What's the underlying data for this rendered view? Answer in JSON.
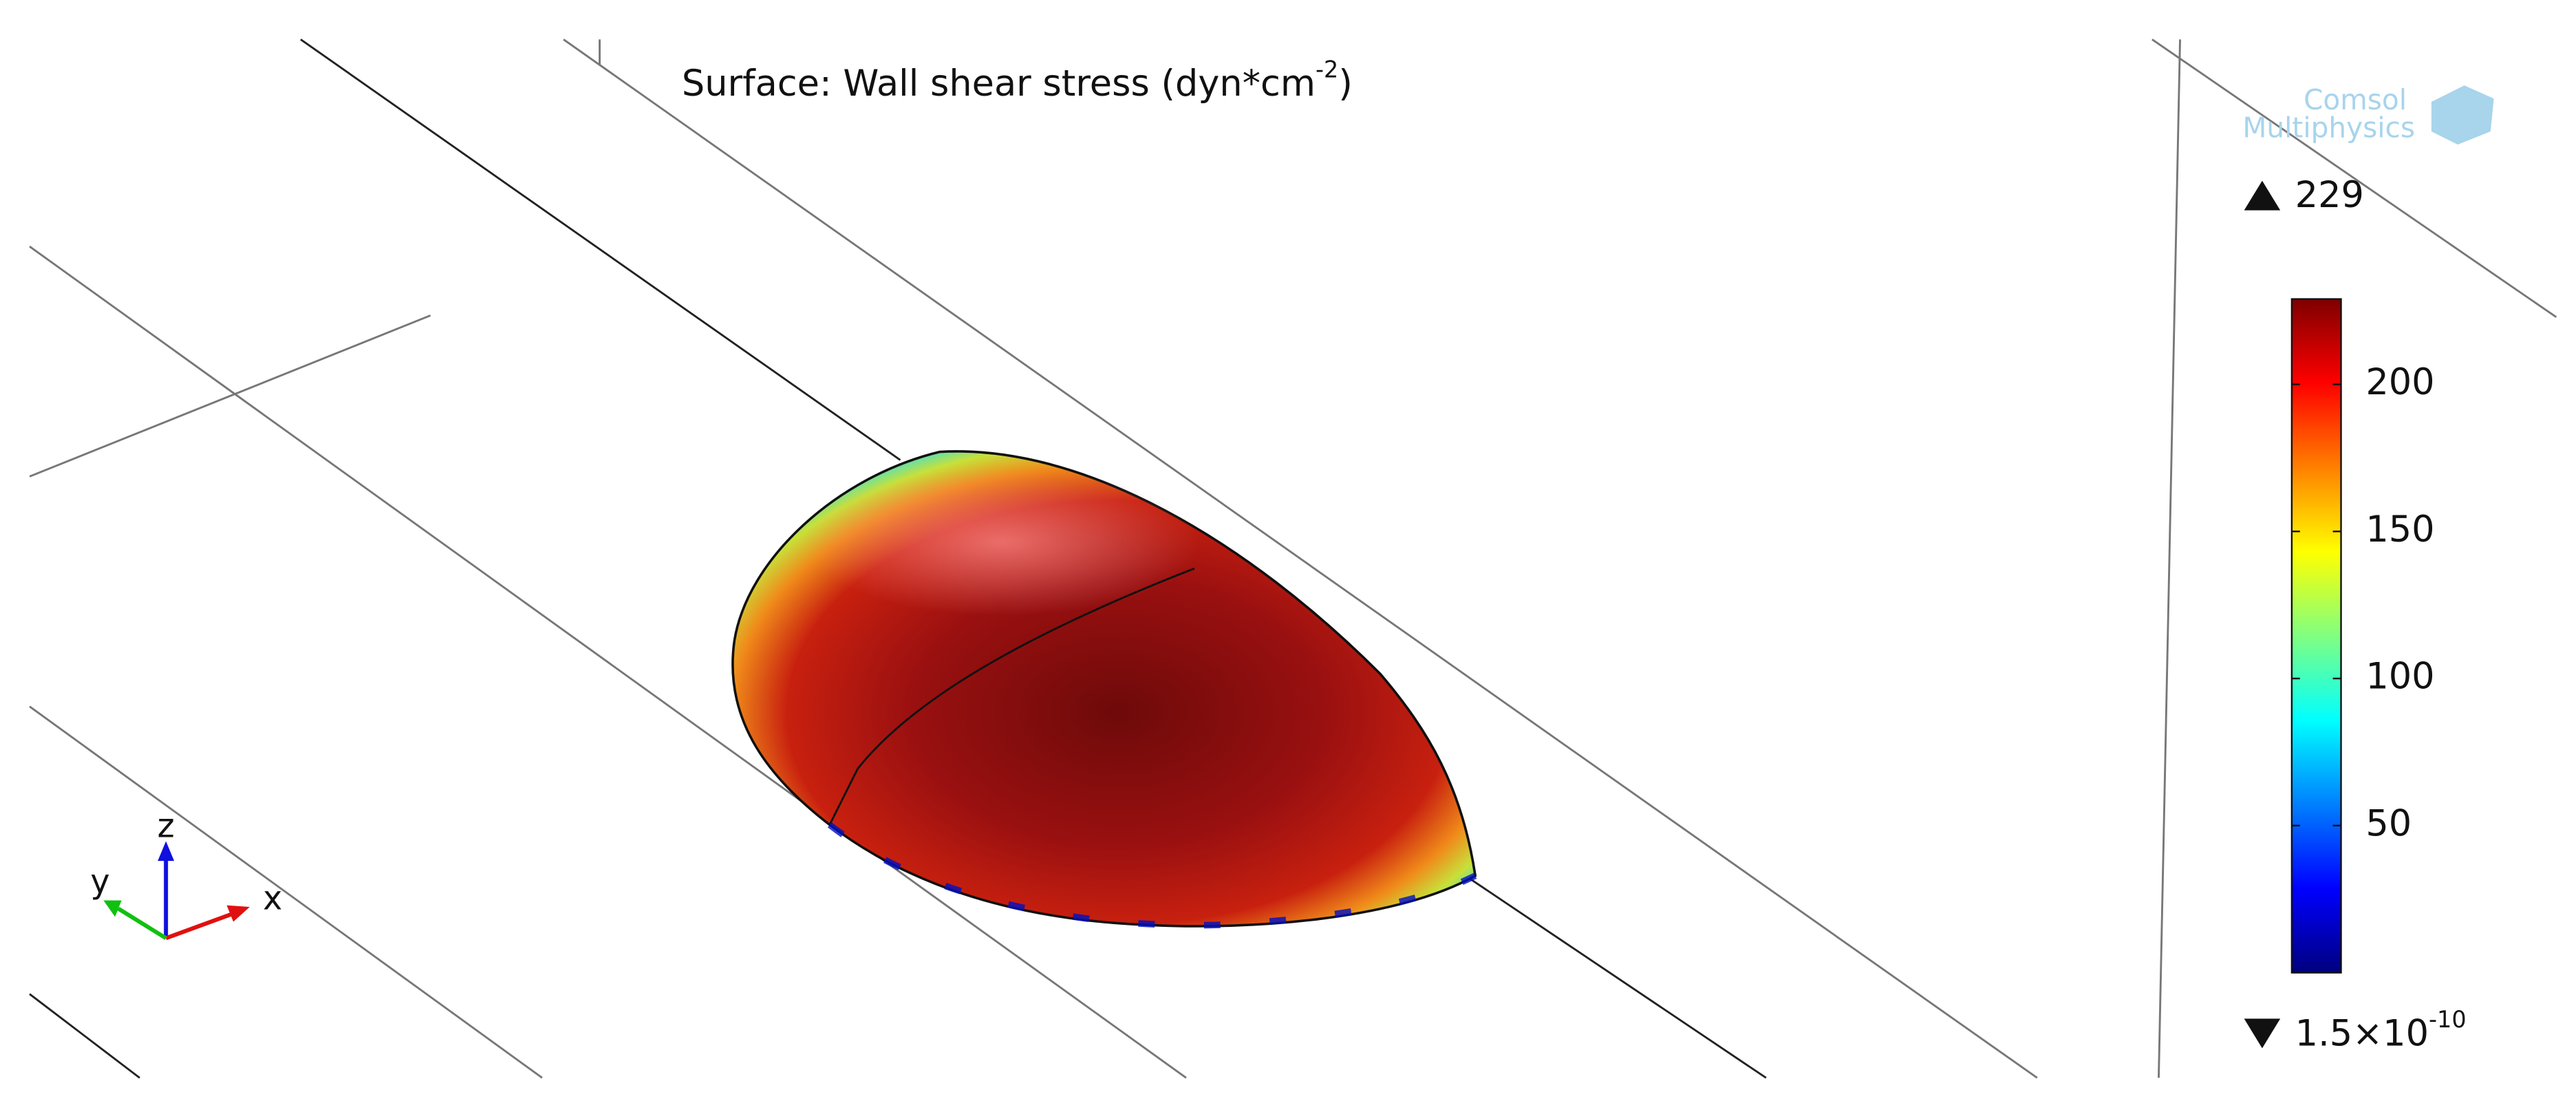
{
  "chart_data": {
    "type": "surface",
    "title": [
      "Surface: Wall shear stress (dyn*cm",
      "-2",
      ")"
    ],
    "axis_labels": [
      "x",
      "y",
      "z"
    ],
    "logo": [
      "Comsol",
      "Multiphysics"
    ],
    "colorbar": {
      "max": 229,
      "min": {
        "value": 1.5e-10,
        "label": "1.5×10",
        "exponent": "-10"
      },
      "ticks": [
        50,
        100,
        150,
        200
      ],
      "colormap": [
        "#00007f",
        "#0000ff",
        "#0080ff",
        "#00ffff",
        "#80ff80",
        "#ffff00",
        "#ff8000",
        "#ff0000",
        "#7f0000"
      ]
    }
  }
}
